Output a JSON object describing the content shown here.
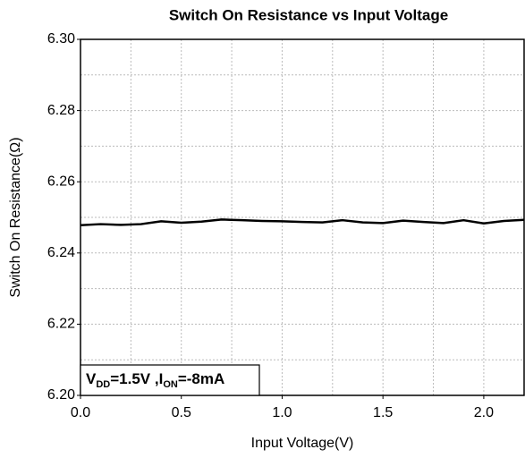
{
  "chart_data": {
    "type": "line",
    "title": "Switch On Resistance vs Input Voltage",
    "x_label": "Input Voltage(V)",
    "y_label": "Switch On Resistance(Ω)",
    "annotation": [
      {
        "text": "V"
      },
      {
        "text": "DD",
        "sub": true
      },
      {
        "text": "=1.5V ,I"
      },
      {
        "text": "ON",
        "sub": true
      },
      {
        "text": "=-8mA"
      }
    ],
    "x": [
      0,
      0.1,
      0.2,
      0.3,
      0.4,
      0.5,
      0.6,
      0.7,
      0.8,
      0.9,
      1.0,
      1.1,
      1.2,
      1.3,
      1.4,
      1.5,
      1.6,
      1.7,
      1.8,
      1.9,
      2.0,
      2.1,
      2.2
    ],
    "series": [
      {
        "color": "#000000",
        "values": [
          6.2478,
          6.2481,
          6.2479,
          6.2481,
          6.2489,
          6.2485,
          6.2488,
          6.2494,
          6.2492,
          6.249,
          6.2489,
          6.2487,
          6.2486,
          6.2492,
          6.2486,
          6.2484,
          6.2491,
          6.2487,
          6.2484,
          6.2492,
          6.2483,
          6.249,
          6.2493
        ]
      }
    ],
    "xlim": [
      0,
      2.2
    ],
    "ylim": [
      6.2,
      6.3
    ],
    "xticks": [
      {
        "value": 0,
        "label": "0.0"
      },
      0.5,
      {
        "value": 1,
        "label": "1.0"
      },
      1.5,
      {
        "value": 2,
        "label": "2.0"
      }
    ],
    "yticks": [
      {
        "value": 6.2,
        "label": "6.20"
      },
      6.22,
      6.24,
      6.26,
      6.28,
      {
        "value": 6.3,
        "label": "6.30"
      }
    ],
    "x_grid": [
      0.25,
      0.5,
      0.75,
      1,
      1.25,
      1.5,
      1.75,
      2
    ],
    "y_grid": [
      6.21,
      6.22,
      6.23,
      6.24,
      6.25,
      6.26,
      6.27,
      6.28,
      6.29
    ],
    "grid": true
  }
}
